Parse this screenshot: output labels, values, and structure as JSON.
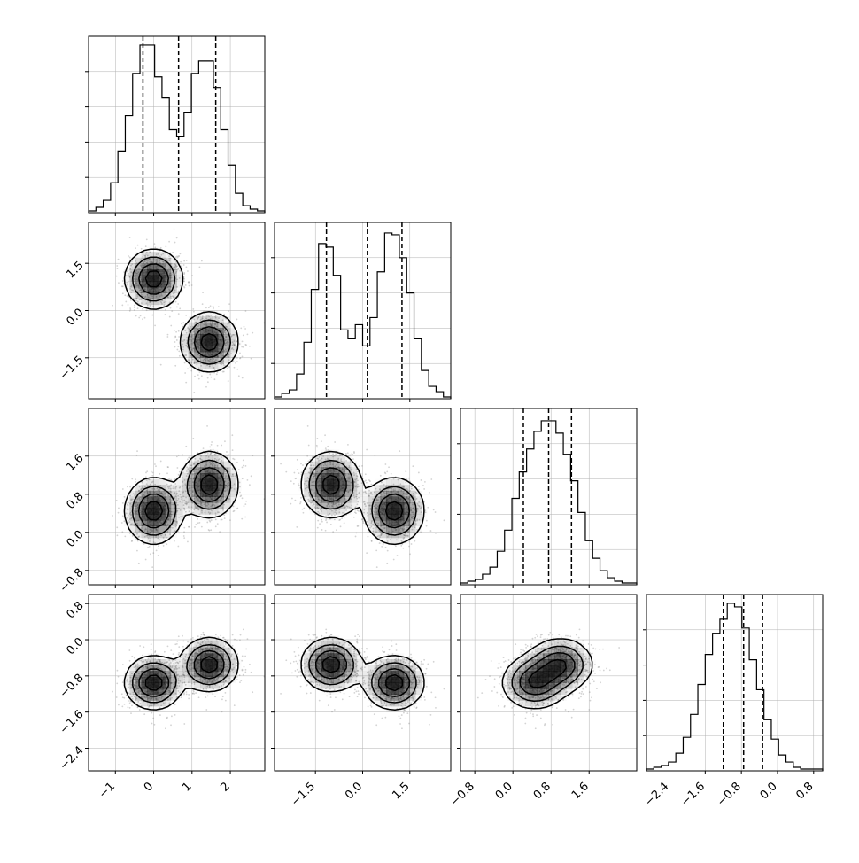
{
  "chart_data": {
    "type": "scatter",
    "title": "",
    "variables": [
      {
        "ticks": [
          -1,
          0,
          1,
          2
        ],
        "tick_labels": [
          "−1",
          "0",
          "1",
          "2"
        ],
        "range": [
          -1.7,
          2.9
        ],
        "quantiles": [
          -0.28,
          0.65,
          1.62
        ]
      },
      {
        "ticks": [
          -1.5,
          0.0,
          1.5
        ],
        "tick_labels": [
          "−1.5",
          "0.0",
          "1.5"
        ],
        "range": [
          -2.8,
          2.8
        ],
        "quantiles": [
          -1.15,
          0.15,
          1.25
        ]
      },
      {
        "ticks": [
          -0.8,
          0.0,
          0.8,
          1.6
        ],
        "tick_labels": [
          "−0.8",
          "0.0",
          "0.8",
          "1.6"
        ],
        "range": [
          -1.1,
          2.6
        ],
        "quantiles": [
          0.22,
          0.75,
          1.23
        ]
      },
      {
        "ticks": [
          -2.4,
          -1.6,
          -0.8,
          0.0,
          0.8
        ],
        "tick_labels": [
          "−2.4",
          "−1.6",
          "−0.8",
          "0.0",
          "0.8"
        ],
        "range": [
          -2.9,
          1.0
        ],
        "quantiles": [
          -1.2,
          -0.75,
          -0.33
        ]
      }
    ],
    "hist_heights": [
      [
        0.01,
        0.03,
        0.07,
        0.17,
        0.35,
        0.55,
        0.79,
        0.95,
        0.95,
        0.77,
        0.65,
        0.47,
        0.43,
        0.57,
        0.79,
        0.86,
        0.86,
        0.71,
        0.47,
        0.27,
        0.11,
        0.04,
        0.02,
        0.01
      ],
      [
        0.01,
        0.03,
        0.05,
        0.14,
        0.32,
        0.62,
        0.88,
        0.86,
        0.7,
        0.39,
        0.34,
        0.42,
        0.3,
        0.46,
        0.72,
        0.94,
        0.93,
        0.8,
        0.6,
        0.34,
        0.16,
        0.07,
        0.04,
        0.01
      ],
      [
        0.01,
        0.02,
        0.03,
        0.06,
        0.1,
        0.19,
        0.31,
        0.49,
        0.64,
        0.77,
        0.87,
        0.93,
        0.93,
        0.86,
        0.74,
        0.59,
        0.41,
        0.25,
        0.15,
        0.08,
        0.04,
        0.02,
        0.01,
        0.01
      ],
      [
        0.01,
        0.02,
        0.03,
        0.05,
        0.1,
        0.19,
        0.32,
        0.49,
        0.66,
        0.78,
        0.86,
        0.95,
        0.93,
        0.81,
        0.63,
        0.46,
        0.29,
        0.18,
        0.09,
        0.05,
        0.02,
        0.01,
        0.01,
        0.01
      ]
    ],
    "modes": [
      {
        "weight": 0.5,
        "mean": [
          0.0,
          1.0,
          0.45,
          -0.95
        ],
        "sd": [
          0.38,
          0.48,
          0.35,
          0.3
        ]
      },
      {
        "weight": 0.5,
        "mean": [
          1.45,
          -1.0,
          1.0,
          -0.55
        ],
        "sd": [
          0.38,
          0.48,
          0.35,
          0.3
        ]
      }
    ],
    "colors": {
      "line": "#000000",
      "grid": "#b0b0b0",
      "points": "#808080",
      "shade": "#000000"
    }
  }
}
